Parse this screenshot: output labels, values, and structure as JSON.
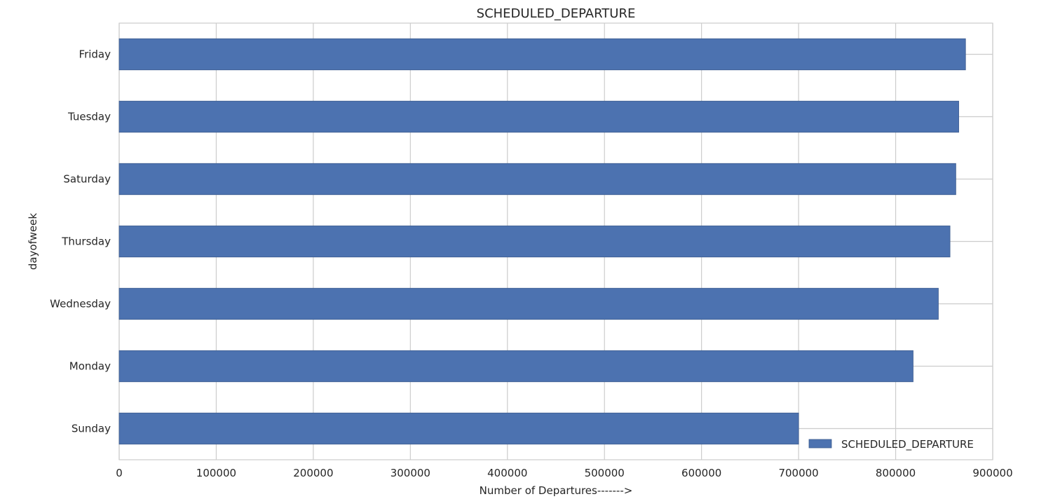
{
  "chart_data": {
    "type": "bar",
    "orientation": "horizontal",
    "title": "SCHEDULED_DEPARTURE",
    "xlabel": "Number of Departures------->",
    "ylabel": "dayofweek",
    "categories": [
      "Friday",
      "Tuesday",
      "Saturday",
      "Thursday",
      "Wednesday",
      "Monday",
      "Sunday"
    ],
    "series": [
      {
        "name": "SCHEDULED_DEPARTURE",
        "values": [
          872000,
          865000,
          862000,
          856000,
          844000,
          818000,
          700000
        ]
      }
    ],
    "xlim": [
      0,
      900000
    ],
    "xticks": [
      "0",
      "100000",
      "200000",
      "300000",
      "400000",
      "500000",
      "600000",
      "700000",
      "800000",
      "900000"
    ],
    "grid": true,
    "legend_position": "lower-right",
    "bar_color": "#4c72b0",
    "grid_color": "#cccccc"
  }
}
